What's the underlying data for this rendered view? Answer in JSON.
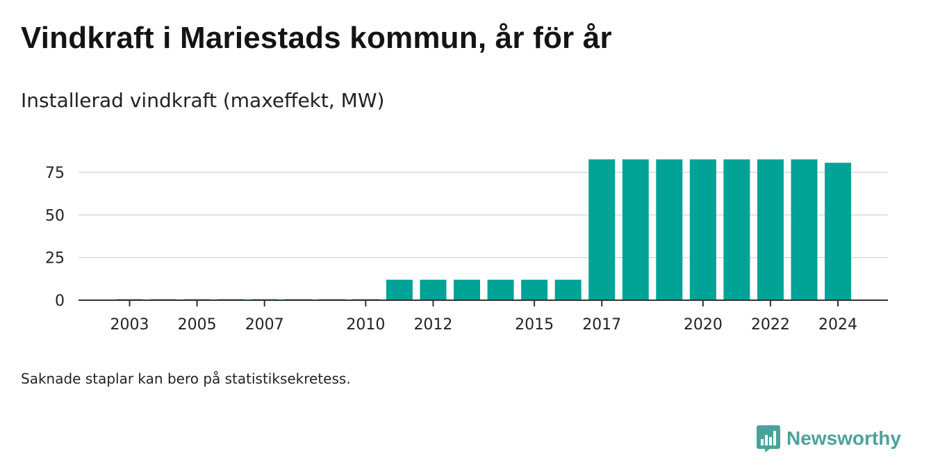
{
  "title": "Vindkraft i Mariestads kommun, år för år",
  "subtitle": "Installerad vindkraft (maxeffekt, MW)",
  "footnote": "Saknade staplar kan bero på statistiksekretess.",
  "brand": {
    "name": "Newsworthy",
    "icon": "newsworthy-logo-icon"
  },
  "colors": {
    "bar": "#00a396",
    "grid": "#d9d9d9",
    "axis": "#333333",
    "brand": "#4aa39a"
  },
  "chart_data": {
    "type": "bar",
    "categories": [
      "2003",
      "2004",
      "2005",
      "2006",
      "2007",
      "2008",
      "2009",
      "2010",
      "2011",
      "2012",
      "2013",
      "2014",
      "2015",
      "2016",
      "2017",
      "2018",
      "2019",
      "2020",
      "2021",
      "2022",
      "2023",
      "2024"
    ],
    "values": [
      0.5,
      0.5,
      0.5,
      0.5,
      0.5,
      0.5,
      0.5,
      0.5,
      12,
      12,
      12,
      12,
      12,
      12,
      82.6,
      82.6,
      82.6,
      82.6,
      82.6,
      82.6,
      82.6,
      80.6
    ],
    "x_tick_labels": [
      "2003",
      "2005",
      "2007",
      "2010",
      "2012",
      "2015",
      "2017",
      "2020",
      "2022",
      "2024"
    ],
    "y_ticks": [
      0,
      25,
      50,
      75
    ],
    "ylim": [
      0,
      85
    ],
    "grid": true,
    "legend": "none"
  }
}
